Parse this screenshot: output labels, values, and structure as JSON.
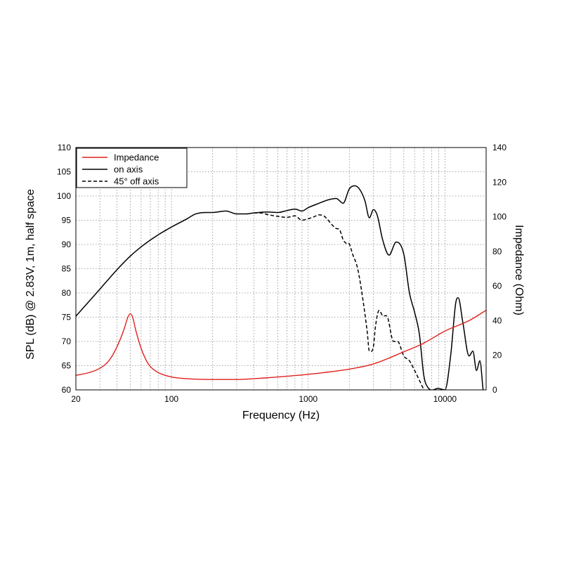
{
  "chart_data": {
    "type": "line",
    "xlabel": "Frequency (Hz)",
    "ylabel_left": "SPL (dB) @ 2.83V, 1m, half space",
    "ylabel_right": "Impedance (Ohm)",
    "x_scale": "log",
    "xlim": [
      20,
      20000
    ],
    "ylim_left": [
      60,
      110
    ],
    "ylim_right": [
      0,
      140
    ],
    "x_ticks": [
      20,
      100,
      1000,
      10000
    ],
    "x_tick_labels": [
      "20",
      "100",
      "1000",
      "10000"
    ],
    "y_left_ticks": [
      60,
      65,
      70,
      75,
      80,
      85,
      90,
      95,
      100,
      105,
      110
    ],
    "y_left_tick_labels": [
      "60",
      "65",
      "70",
      "75",
      "80",
      "85",
      "90",
      "95",
      "100",
      "105",
      "110"
    ],
    "y_right_ticks": [
      0,
      20,
      40,
      60,
      80,
      100,
      120,
      140
    ],
    "y_right_tick_labels": [
      "0",
      "20",
      "40",
      "60",
      "80",
      "100",
      "120",
      "140"
    ],
    "grid": true,
    "legend_position": "top-left",
    "series": [
      {
        "name": "Impedance",
        "axis": "right",
        "color": "#e0201c",
        "style": "solid",
        "points": [
          [
            20,
            8.4
          ],
          [
            25,
            10
          ],
          [
            30,
            12.5
          ],
          [
            35,
            17
          ],
          [
            40,
            25
          ],
          [
            45,
            35
          ],
          [
            48,
            42
          ],
          [
            50,
            44
          ],
          [
            52,
            42
          ],
          [
            55,
            34
          ],
          [
            60,
            24
          ],
          [
            65,
            17.5
          ],
          [
            70,
            13.5
          ],
          [
            80,
            10
          ],
          [
            100,
            7.5
          ],
          [
            150,
            6.2
          ],
          [
            200,
            6
          ],
          [
            300,
            6
          ],
          [
            500,
            7
          ],
          [
            1000,
            9
          ],
          [
            2000,
            12
          ],
          [
            3000,
            15
          ],
          [
            5000,
            22
          ],
          [
            7000,
            27
          ],
          [
            10000,
            34
          ],
          [
            15000,
            40
          ],
          [
            20000,
            46
          ]
        ]
      },
      {
        "name": "on axis",
        "axis": "left",
        "color": "#000000",
        "style": "solid",
        "points": [
          [
            20,
            75.2
          ],
          [
            30,
            80.8
          ],
          [
            40,
            84.8
          ],
          [
            50,
            87.6
          ],
          [
            60,
            89.5
          ],
          [
            70,
            90.9
          ],
          [
            80,
            92
          ],
          [
            100,
            93.6
          ],
          [
            130,
            95.3
          ],
          [
            150,
            96.3
          ],
          [
            180,
            96.6
          ],
          [
            200,
            96.6
          ],
          [
            250,
            96.9
          ],
          [
            300,
            96.3
          ],
          [
            350,
            96.3
          ],
          [
            400,
            96.5
          ],
          [
            500,
            96.7
          ],
          [
            600,
            96.6
          ],
          [
            700,
            97
          ],
          [
            800,
            97.3
          ],
          [
            900,
            96.9
          ],
          [
            1000,
            97.6
          ],
          [
            1200,
            98.5
          ],
          [
            1400,
            99.2
          ],
          [
            1600,
            99.5
          ],
          [
            1800,
            98.5
          ],
          [
            2000,
            101.5
          ],
          [
            2200,
            102.1
          ],
          [
            2400,
            101.2
          ],
          [
            2600,
            99
          ],
          [
            2800,
            95.5
          ],
          [
            3000,
            97.2
          ],
          [
            3200,
            96
          ],
          [
            3500,
            91
          ],
          [
            3900,
            87.8
          ],
          [
            4400,
            90.5
          ],
          [
            5000,
            88
          ],
          [
            5500,
            80
          ],
          [
            6000,
            76
          ],
          [
            6500,
            71.5
          ],
          [
            7000,
            63
          ],
          [
            7500,
            60.5
          ],
          [
            9000,
            60.3
          ],
          [
            10000,
            60
          ],
          [
            11000,
            67
          ],
          [
            12000,
            78
          ],
          [
            12500,
            79
          ],
          [
            13500,
            74
          ],
          [
            15000,
            67
          ],
          [
            16000,
            68
          ],
          [
            17000,
            64
          ],
          [
            18000,
            66
          ],
          [
            19000,
            60
          ]
        ]
      },
      {
        "name": "45° off axis",
        "axis": "left",
        "color": "#000000",
        "style": "dashed",
        "points": [
          [
            400,
            96.5
          ],
          [
            450,
            96.5
          ],
          [
            500,
            96.2
          ],
          [
            600,
            95.8
          ],
          [
            700,
            95.6
          ],
          [
            800,
            95.9
          ],
          [
            900,
            95
          ],
          [
            1000,
            95.3
          ],
          [
            1100,
            95.7
          ],
          [
            1200,
            96.1
          ],
          [
            1300,
            95.9
          ],
          [
            1400,
            95
          ],
          [
            1500,
            94
          ],
          [
            1600,
            93.3
          ],
          [
            1700,
            93
          ],
          [
            1800,
            91
          ],
          [
            1900,
            90.2
          ],
          [
            2000,
            90.1
          ],
          [
            2100,
            88.2
          ],
          [
            2300,
            85
          ],
          [
            2500,
            79
          ],
          [
            2700,
            72
          ],
          [
            2800,
            68
          ],
          [
            3000,
            69
          ],
          [
            3100,
            73
          ],
          [
            3300,
            76.4
          ],
          [
            3500,
            75.3
          ],
          [
            3800,
            75
          ],
          [
            4200,
            70
          ],
          [
            4500,
            70
          ],
          [
            5000,
            67
          ],
          [
            5500,
            66
          ],
          [
            6000,
            64
          ],
          [
            6500,
            62
          ],
          [
            7000,
            60
          ]
        ]
      }
    ]
  }
}
